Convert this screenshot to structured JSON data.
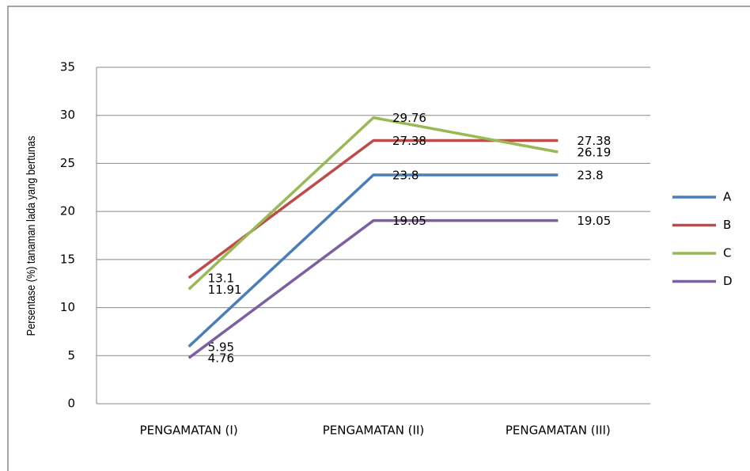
{
  "chart_data": {
    "type": "line",
    "y_label": "Persentase (%) tanaman lada yang bertunas",
    "categories": [
      "PENGAMATAN (I)",
      "PENGAMATAN (II)",
      "PENGAMATAN (III)"
    ],
    "series": [
      {
        "name": "A",
        "color": "#4a7ebb",
        "values": [
          5.95,
          23.8,
          23.8
        ]
      },
      {
        "name": "B",
        "color": "#be4b48",
        "values": [
          13.1,
          27.38,
          27.38
        ]
      },
      {
        "name": "C",
        "color": "#98b954",
        "values": [
          11.91,
          29.76,
          26.19
        ]
      },
      {
        "name": "D",
        "color": "#7d60a0",
        "values": [
          4.76,
          19.05,
          19.05
        ]
      }
    ],
    "ylim": [
      0,
      35
    ],
    "yticks": [
      0,
      5,
      10,
      15,
      20,
      25,
      30,
      35
    ],
    "grid": true,
    "legend": "right"
  }
}
